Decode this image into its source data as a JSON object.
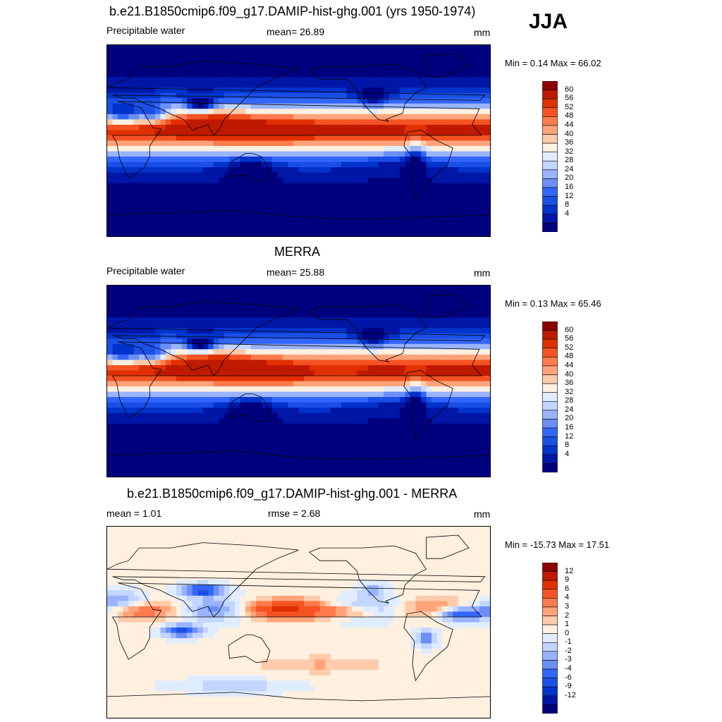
{
  "season": "JJA",
  "units": "mm",
  "colormaps": {
    "abs": [
      "#00007f",
      "#0016a6",
      "#0033cc",
      "#1a4fe6",
      "#3366ff",
      "#6b8ff5",
      "#99b3ff",
      "#c2d6ff",
      "#e0ecff",
      "#fff0e0",
      "#ffcbaa",
      "#ffa47a",
      "#ff7a4c",
      "#f55323",
      "#e03000",
      "#bf1a00",
      "#8c0000"
    ],
    "diff": [
      "#00007f",
      "#0016a6",
      "#0033cc",
      "#1a4fe6",
      "#3366ff",
      "#6b8ff5",
      "#99b3ff",
      "#c2d6ff",
      "#e0ecff",
      "#fff0e0",
      "#ffcbaa",
      "#ffa47a",
      "#ff7a4c",
      "#f55323",
      "#e03000",
      "#bf1a00",
      "#8c0000"
    ]
  },
  "panels": [
    {
      "id": "model",
      "title": "b.e21.B1850cmip6.f09_g17.DAMIP-hist-ghg.001 (yrs 1950-1974)",
      "left_label": "Precipitable water",
      "center_label": "mean=  26.89",
      "units": "mm",
      "minmax": "Min =   0.14 Max =  66.02",
      "colorbar_ticks": [
        "60",
        "56",
        "52",
        "48",
        "44",
        "40",
        "36",
        "32",
        "28",
        "24",
        "20",
        "16",
        "12",
        "8",
        "4"
      ]
    },
    {
      "id": "obs",
      "title": "MERRA",
      "left_label": "Precipitable water",
      "center_label": "mean=  25.88",
      "units": "mm",
      "minmax": "Min =   0.13 Max =  65.46",
      "colorbar_ticks": [
        "60",
        "56",
        "52",
        "48",
        "44",
        "40",
        "36",
        "32",
        "28",
        "24",
        "20",
        "16",
        "12",
        "8",
        "4"
      ]
    },
    {
      "id": "diff",
      "title": "b.e21.B1850cmip6.f09_g17.DAMIP-hist-ghg.001 - MERRA",
      "left_label": "mean =   1.01",
      "center_label": "rmse =   2.68",
      "units": "mm",
      "minmax": "Min = -15.73 Max =  17.51",
      "colorbar_ticks": [
        "12",
        "9",
        "6",
        "4",
        "3",
        "2",
        "1",
        "0",
        "-1",
        "-2",
        "-3",
        "-4",
        "-6",
        "-9",
        "-12"
      ]
    }
  ],
  "chart_data": [
    {
      "type": "heatmap",
      "title": "b.e21.B1850cmip6.f09_g17.DAMIP-hist-ghg.001 (yrs 1950-1974)",
      "variable": "Precipitable water",
      "units": "mm",
      "mean": 26.89,
      "min": 0.14,
      "max": 66.02,
      "levels": [
        4,
        8,
        12,
        16,
        20,
        24,
        28,
        32,
        36,
        40,
        44,
        48,
        52,
        56,
        60
      ]
    },
    {
      "type": "heatmap",
      "title": "MERRA",
      "variable": "Precipitable water",
      "units": "mm",
      "mean": 25.88,
      "min": 0.13,
      "max": 65.46,
      "levels": [
        4,
        8,
        12,
        16,
        20,
        24,
        28,
        32,
        36,
        40,
        44,
        48,
        52,
        56,
        60
      ]
    },
    {
      "type": "heatmap",
      "title": "b.e21.B1850cmip6.f09_g17.DAMIP-hist-ghg.001 - MERRA",
      "units": "mm",
      "mean": 1.01,
      "rmse": 2.68,
      "min": -15.73,
      "max": 17.51,
      "levels": [
        -12,
        -9,
        -6,
        -4,
        -3,
        -2,
        -1,
        0,
        1,
        2,
        3,
        4,
        6,
        9,
        12
      ]
    }
  ]
}
